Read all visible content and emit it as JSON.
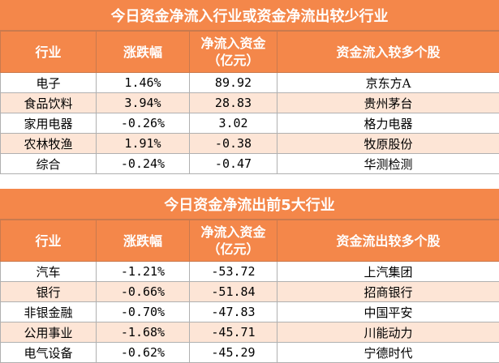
{
  "inflow": {
    "title": "今日资金净流入行业或资金净流出较少行业",
    "headers": {
      "industry": "行业",
      "change": "涨跌幅",
      "net_line1": "净流入资金",
      "net_line2": "（亿元）",
      "stock": "资金流入较多个股"
    },
    "rows": [
      {
        "industry": "电子",
        "change": "1.46%",
        "net": "89.92",
        "stock": "京东方A"
      },
      {
        "industry": "食品饮料",
        "change": "3.94%",
        "net": "28.83",
        "stock": "贵州茅台"
      },
      {
        "industry": "家用电器",
        "change": "-0.26%",
        "net": "3.02",
        "stock": "格力电器"
      },
      {
        "industry": "农林牧渔",
        "change": "1.91%",
        "net": "-0.38",
        "stock": "牧原股份"
      },
      {
        "industry": "综合",
        "change": "-0.24%",
        "net": "-0.47",
        "stock": "华测检测"
      }
    ]
  },
  "outflow": {
    "title": "今日资金净流出前5大行业",
    "headers": {
      "industry": "行业",
      "change": "涨跌幅",
      "net_line1": "净流入资金",
      "net_line2": "（亿元）",
      "stock": "资金流出较多个股"
    },
    "rows": [
      {
        "industry": "汽车",
        "change": "-1.21%",
        "net": "-53.72",
        "stock": "上汽集团"
      },
      {
        "industry": "银行",
        "change": "-0.66%",
        "net": "-51.84",
        "stock": "招商银行"
      },
      {
        "industry": "非银金融",
        "change": "-0.70%",
        "net": "-47.83",
        "stock": "中国平安"
      },
      {
        "industry": "公用事业",
        "change": "-1.68%",
        "net": "-45.71",
        "stock": "川能动力"
      },
      {
        "industry": "电气设备",
        "change": "-0.62%",
        "net": "-45.29",
        "stock": "宁德时代"
      }
    ]
  },
  "colors": {
    "header_bg": "#f4874a",
    "alt_row_bg": "#fde5d6"
  }
}
